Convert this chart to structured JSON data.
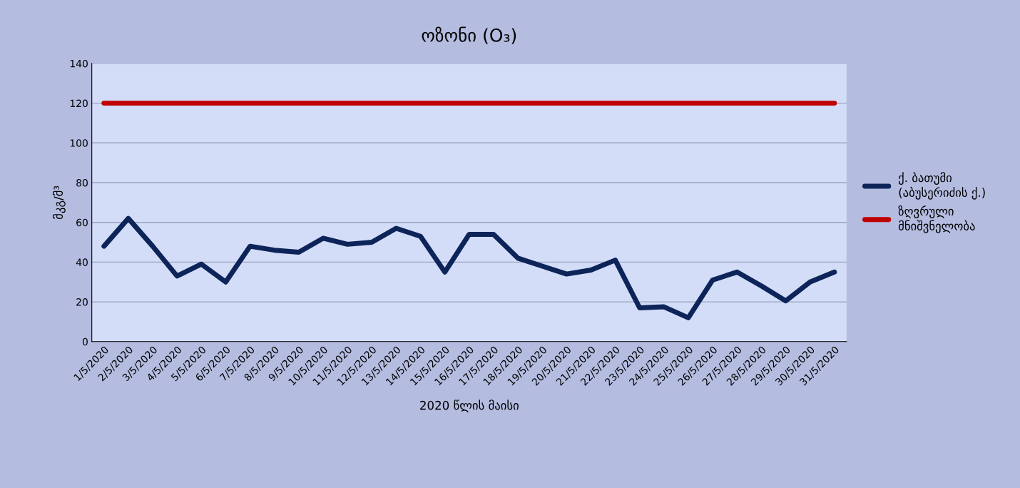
{
  "chart_data": {
    "type": "line",
    "title": "ოზონი (O₃)",
    "xlabel": "2020 წლის მაისი",
    "ylabel": "მკგ/მ³",
    "categories": [
      "1/5/2020",
      "2/5/2020",
      "3/5/2020",
      "4/5/2020",
      "5/5/2020",
      "6/5/2020",
      "7/5/2020",
      "8/5/2020",
      "9/5/2020",
      "10/5/2020",
      "11/5/2020",
      "12/5/2020",
      "13/5/2020",
      "14/5/2020",
      "15/5/2020",
      "16/5/2020",
      "17/5/2020",
      "18/5/2020",
      "19/5/2020",
      "20/5/2020",
      "21/5/2020",
      "22/5/2020",
      "23/5/2020",
      "24/5/2020",
      "25/5/2020",
      "26/5/2020",
      "27/5/2020",
      "28/5/2020",
      "29/5/2020",
      "30/5/2020",
      "31/5/2020"
    ],
    "series": [
      {
        "name": "ქ. ბათუმი (აბუსერიძის ქ.)",
        "color": "#0d2459",
        "values": [
          48,
          62,
          48,
          33,
          39,
          30,
          48,
          46,
          45,
          52,
          49,
          50,
          57,
          53,
          35,
          54,
          54,
          42,
          38,
          34,
          36,
          41,
          17,
          17.5,
          12,
          31,
          35,
          28,
          20.5,
          30,
          35
        ]
      },
      {
        "name": "ზღვრული მნიშვნელობა",
        "color": "#c00000",
        "values": [
          120,
          120,
          120,
          120,
          120,
          120,
          120,
          120,
          120,
          120,
          120,
          120,
          120,
          120,
          120,
          120,
          120,
          120,
          120,
          120,
          120,
          120,
          120,
          120,
          120,
          120,
          120,
          120,
          120,
          120,
          120
        ]
      }
    ],
    "ylim": [
      0,
      140
    ],
    "yticks": [
      0,
      20,
      40,
      60,
      80,
      100,
      120,
      140
    ],
    "grid": "y",
    "legend": "right",
    "marker": "none",
    "line_style": "solid"
  }
}
